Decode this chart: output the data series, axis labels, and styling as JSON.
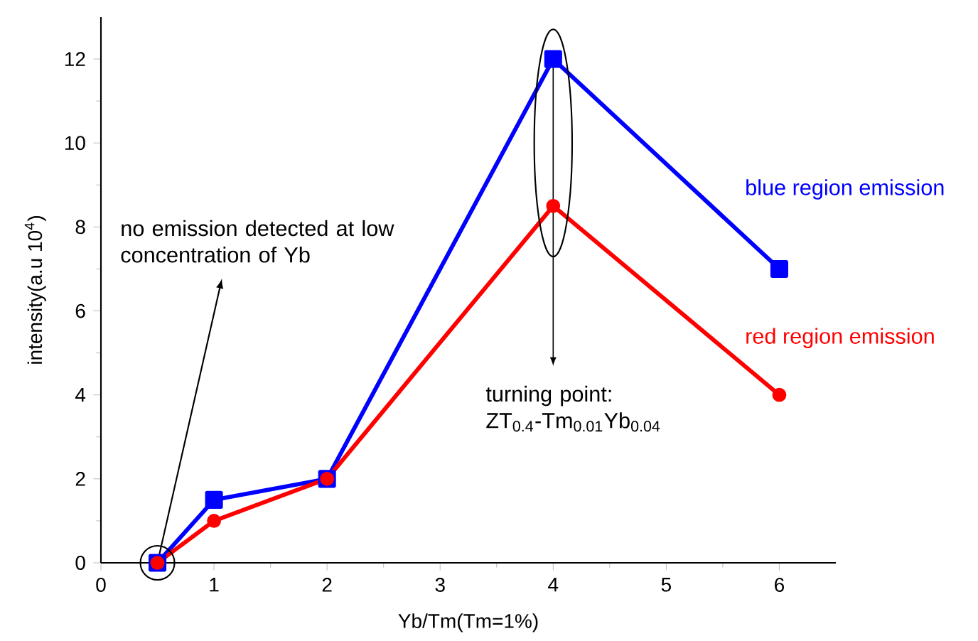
{
  "chart_data": {
    "type": "line",
    "xlabel": "Yb/Tm(Tm=1%)",
    "ylabel": "intensity(a.u  10$^{4}$)",
    "x": [
      0.5,
      1,
      2,
      4,
      6
    ],
    "series": [
      {
        "name": "blue region emission",
        "color": "#0000ff",
        "marker": "square",
        "values": [
          0,
          1.5,
          2,
          12,
          7
        ]
      },
      {
        "name": "red region emission",
        "color": "#ff0000",
        "marker": "circle",
        "values": [
          0,
          1,
          2,
          8.5,
          4
        ]
      }
    ],
    "xlim": [
      0,
      6.5
    ],
    "xticks": [
      0,
      1,
      2,
      3,
      4,
      5,
      6
    ],
    "ylim": [
      0,
      13
    ],
    "yticks": [
      0,
      2,
      4,
      6,
      8,
      10,
      12
    ],
    "grid": false,
    "legend": false,
    "line_style": "solid",
    "annotations": [
      {
        "text": "no emission detected at low concentration of Yb",
        "x": 0.5,
        "y": 0
      },
      {
        "text": "turning point: ZT$_{0.4}$-Tm$_{0.01}$Yb$_{0.04}$",
        "x": 4,
        "y": 12
      }
    ]
  }
}
